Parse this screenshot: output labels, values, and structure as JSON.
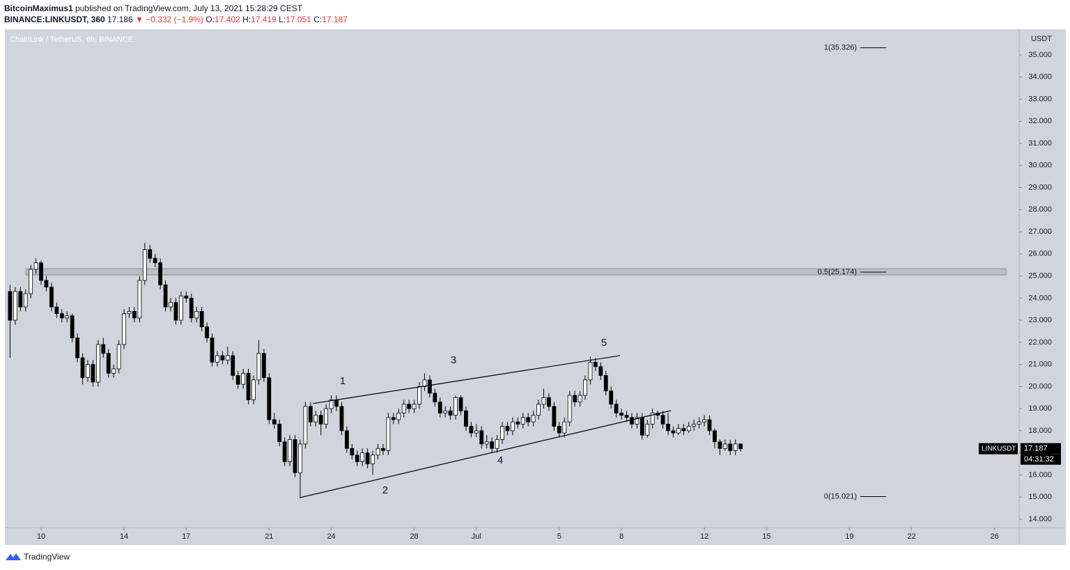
{
  "header": {
    "author": "BitcoinMaximus1",
    "published": "published on TradingView.com, July 13, 2021 15:28:29 CEST",
    "symbol": "BINANCE:LINKUSDT, 360",
    "last": "17.186",
    "change": "▼ −0.332 (−1.9%)",
    "ohlc": [
      {
        "label": "O:",
        "value": "17.402"
      },
      {
        "label": "H:",
        "value": "17.419"
      },
      {
        "label": "L:",
        "value": "17.051"
      },
      {
        "label": "C:",
        "value": "17.187"
      }
    ]
  },
  "chart_data": {
    "type": "candlestick",
    "title": "ChainLink / TetherUS, 6h, BINANCE",
    "y_unit": "USDT",
    "countdown": "04:31:32",
    "x": [
      8.5,
      8.75,
      9,
      9.25,
      9.5,
      9.75,
      10,
      10.25,
      10.5,
      10.75,
      11,
      11.25,
      11.5,
      11.75,
      12,
      12.25,
      12.5,
      12.75,
      13,
      13.25,
      13.5,
      13.75,
      14,
      14.25,
      14.5,
      14.75,
      15,
      15.25,
      15.5,
      15.75,
      16,
      16.25,
      16.5,
      16.75,
      17,
      17.25,
      17.5,
      17.75,
      18,
      18.25,
      18.5,
      18.75,
      19,
      19.25,
      19.5,
      19.75,
      20,
      20.25,
      20.5,
      20.75,
      21,
      21.25,
      21.5,
      21.75,
      22,
      22.25,
      22.5,
      22.75,
      23,
      23.25,
      23.5,
      23.75,
      24,
      24.25,
      24.5,
      24.75,
      25,
      25.25,
      25.5,
      25.75,
      26,
      26.25,
      26.5,
      26.75,
      27,
      27.25,
      27.5,
      27.75,
      28,
      28.25,
      28.5,
      28.75,
      29,
      29.25,
      29.5,
      29.75,
      30,
      30.25,
      30.5,
      30.75,
      31,
      31.25,
      31.5,
      31.75,
      32,
      32.25,
      32.5,
      32.75,
      33,
      33.25,
      33.5,
      33.75,
      34,
      34.25,
      34.5,
      34.75,
      35,
      35.25,
      35.5,
      35.75,
      36,
      36.25,
      36.5,
      36.75,
      37,
      37.25,
      37.5,
      37.75,
      38,
      38.25,
      38.5,
      38.75,
      39,
      39.25,
      39.5,
      39.75,
      40,
      40.25,
      40.5,
      40.75,
      41,
      41.25,
      41.5,
      41.75,
      42,
      42.25,
      42.5,
      42.75,
      43,
      43.25,
      43.5,
      43.75
    ],
    "series": [
      {
        "name": "LINKUSDT",
        "up_color": "#ffffff",
        "down_color": "#000000",
        "ohlc": [
          [
            24.3,
            24.6,
            21.3,
            23.0
          ],
          [
            23.0,
            24.5,
            22.8,
            24.3
          ],
          [
            24.3,
            24.5,
            23.4,
            23.6
          ],
          [
            23.6,
            24.4,
            23.4,
            24.2
          ],
          [
            24.2,
            25.5,
            24.0,
            25.3
          ],
          [
            25.3,
            25.8,
            25.1,
            25.6
          ],
          [
            25.6,
            25.7,
            24.6,
            24.8
          ],
          [
            24.8,
            25.0,
            24.3,
            24.5
          ],
          [
            24.5,
            24.7,
            23.4,
            23.6
          ],
          [
            23.6,
            23.8,
            23.1,
            23.3
          ],
          [
            23.3,
            23.5,
            22.9,
            23.1
          ],
          [
            23.1,
            23.4,
            22.9,
            23.2
          ],
          [
            23.2,
            23.3,
            22.0,
            22.2
          ],
          [
            22.2,
            22.4,
            21.1,
            21.3
          ],
          [
            21.3,
            21.5,
            20.1,
            20.4
          ],
          [
            20.4,
            21.2,
            20.2,
            21.0
          ],
          [
            21.0,
            21.2,
            20.0,
            20.2
          ],
          [
            20.2,
            22.1,
            20.0,
            21.9
          ],
          [
            21.9,
            22.2,
            21.3,
            21.5
          ],
          [
            21.5,
            21.7,
            20.4,
            20.6
          ],
          [
            20.6,
            21.0,
            20.4,
            20.8
          ],
          [
            20.8,
            22.1,
            20.6,
            21.9
          ],
          [
            21.9,
            23.5,
            21.7,
            23.3
          ],
          [
            23.3,
            23.6,
            23.1,
            23.4
          ],
          [
            23.4,
            23.6,
            22.9,
            23.1
          ],
          [
            23.1,
            25.0,
            22.9,
            24.8
          ],
          [
            24.8,
            26.5,
            24.6,
            26.2
          ],
          [
            26.2,
            26.4,
            25.6,
            25.8
          ],
          [
            25.8,
            26.0,
            25.4,
            25.6
          ],
          [
            25.6,
            25.8,
            24.4,
            24.6
          ],
          [
            24.6,
            24.8,
            23.4,
            23.6
          ],
          [
            23.6,
            24.0,
            23.4,
            23.8
          ],
          [
            23.8,
            24.0,
            22.8,
            23.0
          ],
          [
            23.0,
            24.3,
            22.8,
            24.1
          ],
          [
            24.1,
            24.3,
            23.8,
            24.0
          ],
          [
            24.0,
            24.2,
            22.9,
            23.1
          ],
          [
            23.1,
            23.6,
            22.9,
            23.4
          ],
          [
            23.4,
            23.6,
            22.5,
            22.7
          ],
          [
            22.7,
            22.9,
            22.0,
            22.2
          ],
          [
            22.2,
            22.4,
            20.9,
            21.1
          ],
          [
            21.1,
            21.6,
            20.9,
            21.4
          ],
          [
            21.4,
            21.6,
            21.0,
            21.2
          ],
          [
            21.2,
            21.8,
            21.0,
            21.4
          ],
          [
            21.4,
            21.6,
            20.3,
            20.5
          ],
          [
            20.5,
            20.7,
            19.9,
            20.1
          ],
          [
            20.1,
            20.8,
            19.9,
            20.6
          ],
          [
            20.6,
            20.8,
            19.2,
            19.4
          ],
          [
            19.4,
            20.5,
            19.2,
            20.3
          ],
          [
            20.3,
            22.1,
            20.1,
            21.5
          ],
          [
            21.5,
            21.7,
            20.2,
            20.4
          ],
          [
            20.4,
            20.6,
            18.3,
            18.5
          ],
          [
            18.5,
            18.8,
            18.1,
            18.3
          ],
          [
            18.3,
            18.5,
            17.3,
            17.5
          ],
          [
            17.5,
            17.7,
            16.4,
            16.6
          ],
          [
            16.6,
            17.8,
            16.4,
            17.6
          ],
          [
            17.6,
            17.8,
            15.9,
            16.1
          ],
          [
            16.1,
            17.6,
            15.021,
            17.4
          ],
          [
            17.4,
            19.3,
            17.2,
            19.1
          ],
          [
            19.1,
            19.3,
            18.2,
            18.4
          ],
          [
            18.4,
            18.9,
            18.2,
            18.7
          ],
          [
            18.7,
            18.9,
            17.8,
            18.3
          ],
          [
            18.3,
            19.2,
            18.1,
            19.0
          ],
          [
            19.0,
            19.6,
            18.8,
            19.4
          ],
          [
            19.4,
            19.6,
            18.9,
            19.1
          ],
          [
            19.1,
            19.3,
            17.8,
            18.0
          ],
          [
            18.0,
            18.2,
            17.0,
            17.2
          ],
          [
            17.2,
            17.4,
            16.7,
            16.9
          ],
          [
            16.9,
            17.1,
            16.4,
            16.6
          ],
          [
            16.6,
            17.2,
            16.4,
            17.0
          ],
          [
            17.0,
            17.2,
            16.3,
            16.5
          ],
          [
            16.5,
            17.1,
            16.0,
            16.9
          ],
          [
            16.9,
            17.4,
            16.7,
            17.2
          ],
          [
            17.2,
            17.4,
            16.9,
            17.1
          ],
          [
            17.1,
            18.8,
            16.9,
            18.6
          ],
          [
            18.6,
            18.8,
            18.3,
            18.5
          ],
          [
            18.5,
            19.0,
            18.3,
            18.8
          ],
          [
            18.8,
            19.4,
            18.6,
            19.2
          ],
          [
            19.2,
            19.4,
            18.8,
            19.0
          ],
          [
            19.0,
            19.4,
            18.8,
            19.2
          ],
          [
            19.2,
            20.2,
            19.0,
            20.0
          ],
          [
            20.0,
            20.6,
            19.8,
            20.3
          ],
          [
            20.3,
            20.5,
            19.5,
            19.7
          ],
          [
            19.7,
            19.9,
            19.1,
            19.3
          ],
          [
            19.3,
            19.5,
            18.6,
            18.8
          ],
          [
            18.8,
            19.1,
            18.6,
            18.9
          ],
          [
            18.9,
            19.1,
            18.5,
            18.7
          ],
          [
            18.7,
            19.6,
            18.5,
            19.5
          ],
          [
            19.5,
            19.6,
            18.7,
            18.9
          ],
          [
            18.9,
            19.1,
            18.0,
            18.2
          ],
          [
            18.2,
            18.4,
            17.7,
            17.9
          ],
          [
            17.9,
            18.3,
            17.7,
            18.0
          ],
          [
            18.0,
            18.2,
            17.2,
            17.4
          ],
          [
            17.4,
            17.8,
            17.2,
            17.5
          ],
          [
            17.5,
            17.7,
            17.0,
            17.2
          ],
          [
            17.2,
            17.8,
            17.0,
            17.6
          ],
          [
            17.6,
            18.4,
            17.4,
            18.2
          ],
          [
            18.2,
            18.4,
            17.8,
            18.0
          ],
          [
            18.0,
            18.6,
            17.8,
            18.4
          ],
          [
            18.4,
            18.6,
            18.1,
            18.3
          ],
          [
            18.3,
            18.8,
            18.1,
            18.6
          ],
          [
            18.6,
            18.8,
            18.2,
            18.4
          ],
          [
            18.4,
            18.9,
            18.2,
            18.7
          ],
          [
            18.7,
            19.4,
            18.5,
            19.2
          ],
          [
            19.2,
            19.9,
            19.0,
            19.5
          ],
          [
            19.5,
            19.7,
            18.9,
            19.1
          ],
          [
            19.1,
            19.3,
            18.0,
            18.2
          ],
          [
            18.2,
            18.4,
            17.7,
            17.9
          ],
          [
            17.9,
            18.6,
            17.7,
            18.4
          ],
          [
            18.4,
            19.8,
            18.2,
            19.6
          ],
          [
            19.6,
            19.8,
            19.1,
            19.3
          ],
          [
            19.3,
            19.8,
            19.1,
            19.6
          ],
          [
            19.6,
            20.5,
            19.4,
            20.3
          ],
          [
            20.3,
            21.35,
            20.1,
            21.1
          ],
          [
            21.1,
            21.3,
            20.7,
            20.9
          ],
          [
            20.9,
            21.1,
            20.3,
            20.5
          ],
          [
            20.5,
            20.7,
            19.6,
            19.8
          ],
          [
            19.8,
            20.0,
            19.0,
            19.2
          ],
          [
            19.2,
            19.4,
            18.6,
            18.8
          ],
          [
            18.8,
            19.0,
            18.5,
            18.7
          ],
          [
            18.7,
            18.9,
            18.4,
            18.6
          ],
          [
            18.6,
            18.8,
            18.1,
            18.3
          ],
          [
            18.3,
            18.8,
            18.1,
            18.6
          ],
          [
            18.6,
            18.8,
            17.6,
            17.8
          ],
          [
            17.8,
            18.5,
            17.7,
            18.3
          ],
          [
            18.3,
            19.0,
            18.1,
            18.8
          ],
          [
            18.8,
            18.9,
            18.5,
            18.7
          ],
          [
            18.7,
            18.9,
            18.1,
            18.3
          ],
          [
            18.3,
            18.8,
            17.8,
            18.0
          ],
          [
            18.0,
            18.2,
            17.7,
            17.9
          ],
          [
            17.9,
            18.3,
            17.8,
            18.1
          ],
          [
            18.1,
            18.3,
            17.8,
            18.0
          ],
          [
            18.0,
            18.4,
            17.9,
            18.2
          ],
          [
            18.2,
            18.5,
            18.0,
            18.3
          ],
          [
            18.3,
            18.6,
            18.1,
            18.4
          ],
          [
            18.4,
            18.7,
            18.2,
            18.5
          ],
          [
            18.5,
            18.7,
            17.8,
            18.0
          ],
          [
            18.0,
            18.1,
            17.2,
            17.5
          ],
          [
            17.5,
            17.6,
            16.9,
            17.2
          ],
          [
            17.2,
            17.6,
            17.1,
            17.4
          ],
          [
            17.4,
            17.6,
            16.9,
            17.1
          ],
          [
            17.1,
            17.6,
            16.9,
            17.402
          ],
          [
            17.402,
            17.419,
            17.051,
            17.187
          ]
        ]
      }
    ],
    "xlim": [
      8.25,
      57.19
    ],
    "xticks": [
      10,
      14,
      17,
      21,
      24,
      28,
      {
        "value": 31,
        "label": "Jul"
      },
      {
        "value": 35,
        "label": "5"
      },
      {
        "value": 38,
        "label": "8"
      },
      {
        "value": 42,
        "label": "12"
      },
      {
        "value": 45,
        "label": "15"
      },
      {
        "value": 49,
        "label": "19"
      },
      {
        "value": 52,
        "label": "22"
      },
      {
        "value": 56,
        "label": "26"
      }
    ],
    "ylim": [
      13.62,
      36.165
    ],
    "yticks": [
      {
        "value": 14,
        "label": "14.000"
      },
      {
        "value": 15,
        "label": "15.000"
      },
      {
        "value": 16,
        "label": "16.000"
      },
      {
        "value": 17,
        "label": "17.000"
      },
      {
        "value": 18,
        "label": "18.000"
      },
      {
        "value": 19,
        "label": "19.000"
      },
      {
        "value": 20,
        "label": "20.000"
      },
      {
        "value": 21,
        "label": "21.000"
      },
      {
        "value": 22,
        "label": "22.000"
      },
      {
        "value": 23,
        "label": "23.000"
      },
      {
        "value": 24,
        "label": "24.000"
      },
      {
        "value": 25,
        "label": "25.000"
      },
      {
        "value": 26,
        "label": "26.000"
      },
      {
        "value": 27,
        "label": "27.000"
      },
      {
        "value": 28,
        "label": "28.000"
      },
      {
        "value": 29,
        "label": "29.000"
      },
      {
        "value": 30,
        "label": "30.000"
      },
      {
        "value": 31,
        "label": "31.000"
      },
      {
        "value": 32,
        "label": "32.000"
      },
      {
        "value": 33,
        "label": "33.000"
      },
      {
        "value": 34,
        "label": "34.000"
      },
      {
        "value": 35,
        "label": "35.000"
      }
    ],
    "fib_levels": [
      {
        "value": 35.326,
        "label": "1(35.326)"
      },
      {
        "value": 25.174,
        "label": "0.5(25.174)"
      },
      {
        "value": 15.021,
        "label": "0(15.021)"
      }
    ],
    "zone": [
      25.05,
      25.33
    ],
    "wedge": [
      {
        "x": [
          23.11,
          37.93
        ],
        "y": [
          19.23,
          21.4
        ]
      },
      {
        "x": [
          22.47,
          40.39
        ],
        "y": [
          14.97,
          18.91
        ]
      }
    ],
    "waves": [
      {
        "label": "1",
        "x": 24.55,
        "y": 20.23
      },
      {
        "label": "2",
        "x": 26.6,
        "y": 15.29
      },
      {
        "label": "3",
        "x": 29.9,
        "y": 21.18
      },
      {
        "label": "4",
        "x": 32.15,
        "y": 16.64
      },
      {
        "label": "5",
        "x": 37.16,
        "y": 21.96
      }
    ]
  },
  "footer": "TradingView"
}
